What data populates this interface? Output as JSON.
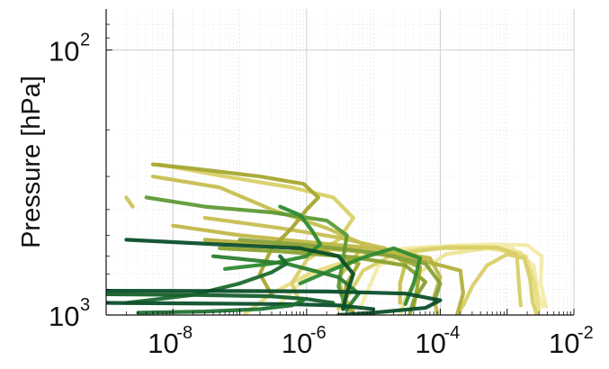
{
  "chart_data": {
    "type": "line",
    "title": "",
    "xlabel": "",
    "ylabel": "Pressure [hPa]",
    "x_scale": "log",
    "y_scale": "log",
    "y_inverted": true,
    "xlim": [
      1e-09,
      0.01
    ],
    "ylim": [
      1000,
      70
    ],
    "grid": true,
    "legend": "none",
    "x_ticks": [
      {
        "base": "10",
        "exp": "-8"
      },
      {
        "base": "10",
        "exp": "-6"
      },
      {
        "base": "10",
        "exp": "-4"
      },
      {
        "base": "10",
        "exp": "-2"
      }
    ],
    "y_ticks": [
      {
        "base": "10",
        "exp": "2"
      },
      {
        "base": "10",
        "exp": "3"
      }
    ],
    "colors": {
      "dark_green": "#0b4f2b",
      "green": "#2f8a31",
      "olive": "#8aa12f",
      "yellow": "#d9cf67",
      "pale_yellow": "#f3eba9"
    },
    "series": [
      {
        "color": "#f3eba9",
        "points": [
          [
            6.3e-06,
            950
          ],
          [
            8e-06,
            820
          ],
          [
            1.2e-05,
            650
          ],
          [
            6e-05,
            560
          ],
          [
            0.0005,
            540
          ],
          [
            0.002,
            545
          ],
          [
            0.0033,
            600
          ],
          [
            0.0032,
            760
          ],
          [
            0.0038,
            930
          ]
        ]
      },
      {
        "color": "#f3eba9",
        "points": [
          [
            4e-07,
            900
          ],
          [
            1e-06,
            720
          ],
          [
            5e-06,
            610
          ],
          [
            3e-05,
            560
          ],
          [
            0.0002,
            545
          ],
          [
            0.0012,
            560
          ],
          [
            0.0025,
            650
          ],
          [
            0.0029,
            820
          ],
          [
            0.0034,
            930
          ]
        ]
      },
      {
        "color": "#eee59a",
        "points": [
          [
            2.5e-05,
            1000
          ],
          [
            3e-05,
            860
          ],
          [
            5e-05,
            690
          ],
          [
            0.00012,
            590
          ],
          [
            0.0005,
            560
          ],
          [
            0.0016,
            580
          ],
          [
            0.0023,
            680
          ],
          [
            0.0025,
            850
          ],
          [
            0.0027,
            990
          ]
        ]
      },
      {
        "color": "#e7dd84",
        "points": [
          [
            1.2e-07,
            990
          ],
          [
            3e-07,
            830
          ],
          [
            1.2e-06,
            690
          ],
          [
            7e-06,
            600
          ],
          [
            6e-05,
            560
          ],
          [
            0.0006,
            560
          ],
          [
            0.0019,
            600
          ],
          [
            0.0026,
            760
          ],
          [
            0.003,
            960
          ]
        ]
      },
      {
        "color": "#d9cf67",
        "points": [
          [
            0.00018,
            1000
          ],
          [
            0.00022,
            920
          ],
          [
            0.0003,
            780
          ],
          [
            0.0005,
            650
          ],
          [
            0.001,
            590
          ],
          [
            0.0018,
            610
          ],
          [
            0.0022,
            730
          ],
          [
            0.0024,
            890
          ],
          [
            0.0028,
            1000
          ]
        ]
      },
      {
        "color": "#d9cf67",
        "points": [
          [
            3e-06,
            950
          ],
          [
            4.5e-06,
            820
          ],
          [
            7e-06,
            680
          ],
          [
            2e-05,
            590
          ],
          [
            0.00013,
            555
          ],
          [
            0.0007,
            555
          ],
          [
            0.0014,
            590
          ],
          [
            0.0015,
            760
          ],
          [
            0.0016,
            920
          ]
        ]
      },
      {
        "color": "#d9cf67",
        "points": [
          [
            6e-09,
            270
          ],
          [
            6e-08,
            300
          ],
          [
            6e-07,
            330
          ],
          [
            2.5e-06,
            360
          ],
          [
            5e-06,
            430
          ],
          [
            3e-06,
            520
          ],
          [
            1e-06,
            620
          ],
          [
            6e-07,
            760
          ],
          [
            8e-07,
            900
          ]
        ]
      },
      {
        "color": "#cfc55a",
        "points": [
          [
            2e-09,
            360
          ],
          [
            2.5e-09,
            390
          ]
        ]
      },
      {
        "color": "#c6bf50",
        "points": [
          [
            5e-09,
            300
          ],
          [
            5e-08,
            330
          ],
          [
            3e-07,
            400
          ],
          [
            2e-06,
            470
          ],
          [
            7e-06,
            540
          ],
          [
            5e-06,
            620
          ],
          [
            3e-06,
            720
          ],
          [
            3.5e-06,
            850
          ],
          [
            5e-06,
            960
          ]
        ]
      },
      {
        "color": "#c6bf50",
        "points": [
          [
            3e-08,
            430
          ],
          [
            4e-07,
            470
          ],
          [
            3e-06,
            510
          ],
          [
            1.5e-05,
            560
          ],
          [
            3e-05,
            640
          ],
          [
            2.5e-05,
            760
          ],
          [
            2.5e-05,
            900
          ]
        ]
      },
      {
        "color": "#c0b848",
        "points": [
          [
            1e-08,
            460
          ],
          [
            1e-07,
            500
          ],
          [
            1e-06,
            530
          ],
          [
            1e-05,
            560
          ],
          [
            7e-05,
            610
          ],
          [
            0.0001,
            720
          ],
          [
            8e-05,
            860
          ],
          [
            9e-05,
            980
          ]
        ]
      },
      {
        "color": "#b4b03b",
        "points": [
          [
            3e-08,
            520
          ],
          [
            4e-07,
            545
          ],
          [
            6e-06,
            575
          ],
          [
            4e-05,
            610
          ],
          [
            0.0002,
            680
          ],
          [
            0.00022,
            830
          ],
          [
            0.00018,
            990
          ]
        ]
      },
      {
        "color": "#a7a632",
        "points": [
          [
            5e-09,
            270
          ],
          [
            2e-08,
            280
          ],
          [
            2e-07,
            300
          ],
          [
            9e-07,
            320
          ],
          [
            1.5e-06,
            360
          ],
          [
            1e-06,
            400
          ],
          [
            6e-07,
            470
          ],
          [
            3e-07,
            560
          ],
          [
            2e-07,
            700
          ],
          [
            3e-07,
            840
          ]
        ]
      },
      {
        "color": "#a7a632",
        "points": [
          [
            6e-07,
            560
          ],
          [
            2e-06,
            580
          ],
          [
            6e-06,
            640
          ],
          [
            4e-06,
            760
          ],
          [
            3.5e-06,
            890
          ],
          [
            5e-06,
            990
          ]
        ]
      },
      {
        "color": "#9da82f",
        "points": [
          [
            3e-06,
            560
          ],
          [
            2e-05,
            600
          ],
          [
            5e-05,
            660
          ],
          [
            4.5e-05,
            790
          ],
          [
            4e-05,
            930
          ]
        ]
      },
      {
        "color": "#8aa12f",
        "points": [
          [
            5e-08,
            560
          ],
          [
            4e-07,
            575
          ],
          [
            5e-06,
            605
          ],
          [
            3e-05,
            650
          ],
          [
            6e-05,
            750
          ],
          [
            4e-05,
            880
          ],
          [
            3.5e-05,
            990
          ]
        ]
      },
      {
        "color": "#86a13a",
        "points": [
          [
            1e-07,
            520
          ],
          [
            1e-06,
            545
          ],
          [
            1e-05,
            580
          ],
          [
            6e-05,
            640
          ],
          [
            0.0001,
            760
          ],
          [
            8e-05,
            900
          ]
        ]
      },
      {
        "color": "#5f9a36",
        "points": [
          [
            4e-09,
            360
          ],
          [
            3e-08,
            390
          ],
          [
            3e-07,
            410
          ],
          [
            2e-06,
            440
          ],
          [
            4e-06,
            500
          ],
          [
            3.5e-06,
            620
          ],
          [
            3e-06,
            780
          ],
          [
            4e-06,
            960
          ]
        ]
      },
      {
        "color": "#2f8a31",
        "points": [
          [
            6e-08,
            670
          ],
          [
            3e-07,
            640
          ],
          [
            1e-06,
            600
          ],
          [
            1.6e-06,
            540
          ],
          [
            1.2e-06,
            480
          ],
          [
            8e-07,
            420
          ],
          [
            4e-07,
            390
          ]
        ]
      },
      {
        "color": "#2f8a31",
        "points": [
          [
            8e-07,
            760
          ],
          [
            3e-06,
            660
          ],
          [
            8e-06,
            600
          ],
          [
            2e-05,
            560
          ],
          [
            5e-05,
            610
          ],
          [
            4e-05,
            760
          ],
          [
            3e-05,
            910
          ]
        ]
      },
      {
        "color": "#2b7f2f",
        "points": [
          [
            4e-08,
            600
          ],
          [
            5e-07,
            640
          ],
          [
            3e-06,
            720
          ],
          [
            6e-06,
            830
          ],
          [
            4e-06,
            950
          ]
        ]
      },
      {
        "color": "#1b6a2d",
        "points": [
          [
            2e-09,
            900
          ],
          [
            2e-08,
            840
          ],
          [
            1e-07,
            760
          ],
          [
            3e-07,
            690
          ],
          [
            5e-07,
            640
          ],
          [
            4e-07,
            600
          ]
        ]
      },
      {
        "color": "#0b4f2b",
        "points": [
          [
            1e-09,
            810
          ],
          [
            1e-07,
            812
          ],
          [
            2e-06,
            815
          ],
          [
            3e-05,
            830
          ],
          [
            0.0001,
            880
          ],
          [
            6e-05,
            940
          ],
          [
            1e-05,
            980
          ],
          [
            3e-06,
            1000
          ]
        ]
      },
      {
        "color": "#0b4f2b",
        "points": [
          [
            2e-09,
            520
          ],
          [
            4e-08,
            540
          ],
          [
            8e-07,
            560
          ],
          [
            3e-06,
            600
          ],
          [
            5e-06,
            700
          ],
          [
            4e-06,
            830
          ],
          [
            3.5e-06,
            950
          ]
        ]
      },
      {
        "color": "#0b4f2b",
        "points": [
          [
            1e-09,
            900
          ],
          [
            3e-08,
            905
          ],
          [
            5e-07,
            910
          ],
          [
            3e-06,
            920
          ],
          [
            1e-05,
            950
          ]
        ]
      },
      {
        "color": "#155f2c",
        "points": [
          [
            1e-09,
            835
          ],
          [
            2e-08,
            840
          ],
          [
            3e-07,
            850
          ],
          [
            1e-06,
            870
          ],
          [
            2.5e-06,
            900
          ]
        ]
      },
      {
        "color": "#1f7331",
        "points": [
          [
            3e-09,
            980
          ],
          [
            3e-08,
            970
          ],
          [
            2e-07,
            950
          ],
          [
            6e-07,
            920
          ],
          [
            9e-07,
            880
          ]
        ]
      }
    ]
  }
}
